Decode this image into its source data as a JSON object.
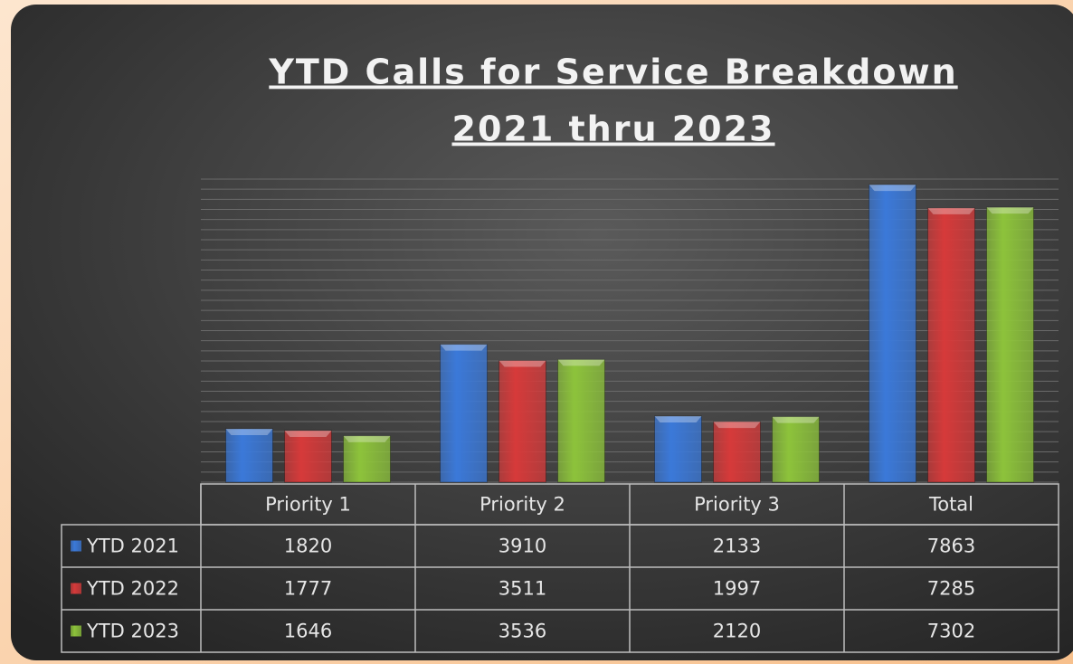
{
  "chart_data": {
    "type": "bar",
    "title": "YTD Calls for Service Breakdown",
    "subtitle": "2021 thru 2023",
    "categories": [
      "Priority 1",
      "Priority 2",
      "Priority 3",
      "Total"
    ],
    "series": [
      {
        "name": "YTD 2021",
        "color": "#3b79d9",
        "values": [
          1820,
          3910,
          2133,
          7863
        ]
      },
      {
        "name": "YTD 2022",
        "color": "#d63a3a",
        "values": [
          1777,
          3511,
          1997,
          7285
        ]
      },
      {
        "name": "YTD 2023",
        "color": "#8dc33b",
        "values": [
          1646,
          3536,
          2120,
          7302
        ]
      }
    ],
    "ylim": [
      500,
      8000
    ],
    "yticks": [
      500,
      750,
      1000,
      1250,
      1500,
      1750,
      2000,
      2250,
      2500,
      2750,
      3000,
      3250,
      3500,
      3750,
      4000,
      4250,
      4500,
      4750,
      5000,
      5250,
      5500,
      5750,
      6000,
      6250,
      6500,
      6750,
      7000,
      7250,
      7500,
      7750,
      8000
    ],
    "grid": true
  }
}
